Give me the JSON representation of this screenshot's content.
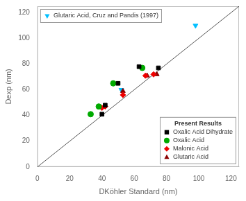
{
  "chart_data": {
    "type": "scatter",
    "xlabel": "DKöhler Standard (nm)",
    "ylabel": "Dexp (nm)",
    "xlim": [
      0,
      125
    ],
    "ylim": [
      0,
      125
    ],
    "xticks": [
      0,
      20,
      40,
      60,
      80,
      100,
      120
    ],
    "yticks": [
      0,
      20,
      40,
      60,
      80,
      100,
      120
    ],
    "grid": false,
    "legend": "lower right",
    "legend_title": "Present Results",
    "series": [
      {
        "type": "line",
        "color": "#555555",
        "x": [
          0,
          125
        ],
        "values": [
          0,
          125
        ]
      },
      {
        "name": "Oxalic Acid Dihydrate",
        "color": "#000000",
        "marker": "square",
        "x": [
          40,
          42,
          50,
          63,
          75
        ],
        "values": [
          41,
          48,
          65,
          78,
          77
        ]
      },
      {
        "name": "Oxalic Acid",
        "color": "#00aa00",
        "marker": "circle",
        "x": [
          33,
          38,
          47,
          65
        ],
        "values": [
          41,
          47,
          65,
          77
        ]
      },
      {
        "name": "Malonic Acid",
        "color": "#ee0000",
        "marker": "diamond",
        "x": [
          40,
          42,
          53,
          67,
          72
        ],
        "values": [
          46,
          47,
          56,
          71,
          72
        ]
      },
      {
        "name": "Glutaric Acid",
        "color": "#8B0000",
        "marker": "triangle-up",
        "x": [
          53,
          68,
          74
        ],
        "values": [
          59,
          71,
          72
        ]
      },
      {
        "name": "Glutaric Acid, Cruz and Pandis (1997)",
        "color": "#00bfff",
        "marker": "triangle-down",
        "legend": "upper left",
        "x": [
          52,
          98
        ],
        "values": [
          60,
          110
        ]
      }
    ]
  }
}
